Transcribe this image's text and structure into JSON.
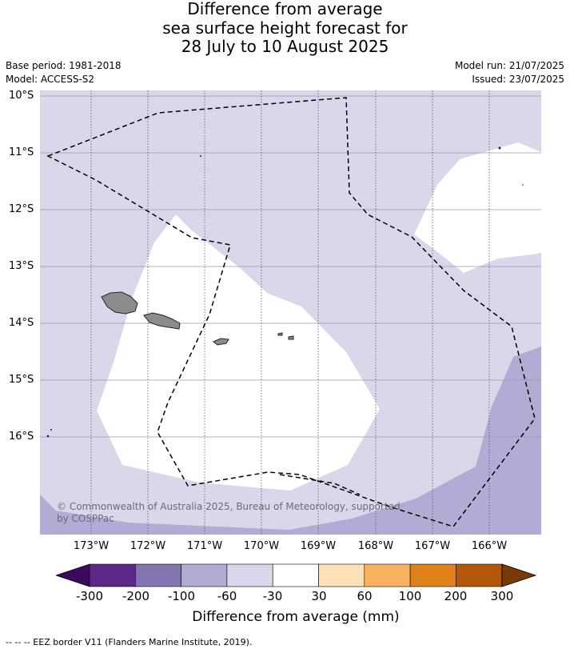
{
  "title": {
    "line1": "Difference from average",
    "line2": "sea surface height forecast for",
    "line3": "28 July to 10 August 2025"
  },
  "meta": {
    "base_period": "Base period: 1981-2018",
    "model": "Model: ACCESS-S2",
    "model_run": "Model run: 21/07/2025",
    "issued": "Issued: 23/07/2025"
  },
  "map": {
    "lat_labels": [
      "10°S",
      "11°S",
      "12°S",
      "13°S",
      "14°S",
      "15°S",
      "16°S"
    ],
    "lon_labels": [
      "173°W",
      "172°W",
      "171°W",
      "170°W",
      "169°W",
      "168°W",
      "167°W",
      "166°W"
    ],
    "copyright": "© Commonwealth of Australia 2025, Bureau of Meteorology, supported by COSPPac",
    "zone_colors": {
      "band_neg60_neg30": "#d8d8ea",
      "band_neg100_neg60": "#b1acd4",
      "land": "#8c8c8c"
    }
  },
  "colorbar": {
    "label": "Difference from average (mm)",
    "ticks": [
      "-300",
      "-200",
      "-100",
      "-60",
      "-30",
      "30",
      "60",
      "100",
      "200",
      "300"
    ],
    "colors": {
      "under": "#3c0a5a",
      "bins": [
        "#5c2888",
        "#8474b0",
        "#b1acd4",
        "#d8d8ea",
        "#ffffff",
        "#fde0b6",
        "#f9b35e",
        "#e0821a",
        "#b45808"
      ],
      "over": "#7a3a06"
    }
  },
  "legend": {
    "eez": "--  --  -- EEZ border V11 (Flanders Marine Institute, 2019)."
  }
}
